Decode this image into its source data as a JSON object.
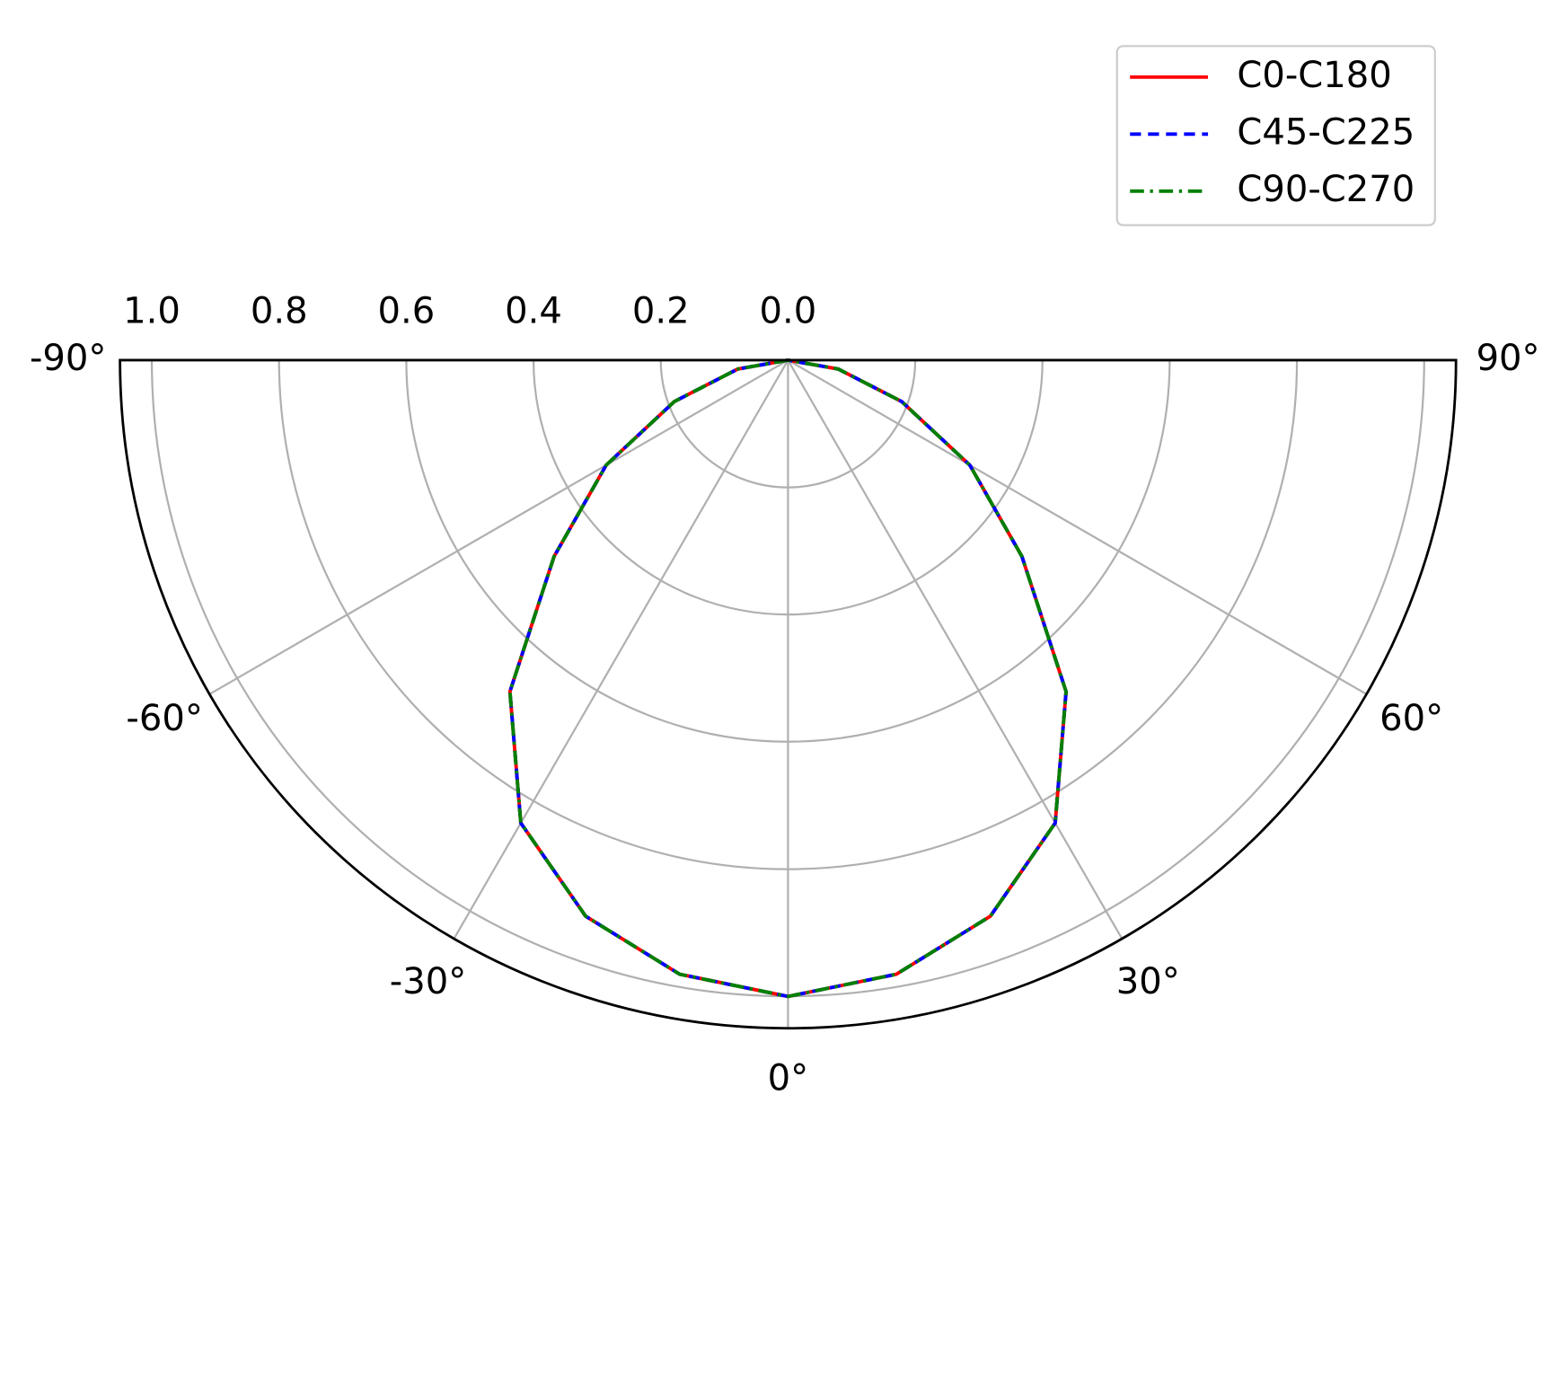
{
  "chart_data": {
    "type": "polar",
    "x": [
      -90,
      -80,
      -70,
      -60,
      -50,
      -40,
      -30,
      -20,
      -10,
      0,
      10,
      20,
      30,
      40,
      50,
      60,
      70,
      80,
      90
    ],
    "series": [
      {
        "name": "C0-C180",
        "color": "#ff0000",
        "linestyle": "solid",
        "values": [
          0,
          0.08,
          0.19,
          0.33,
          0.48,
          0.68,
          0.84,
          0.93,
          0.98,
          1.0,
          0.98,
          0.93,
          0.84,
          0.68,
          0.48,
          0.33,
          0.19,
          0.08,
          0
        ]
      },
      {
        "name": "C45-C225",
        "color": "#0000ff",
        "linestyle": "dashed",
        "values": [
          0,
          0.08,
          0.19,
          0.33,
          0.48,
          0.68,
          0.84,
          0.93,
          0.98,
          1.0,
          0.98,
          0.93,
          0.84,
          0.68,
          0.48,
          0.33,
          0.19,
          0.08,
          0
        ]
      },
      {
        "name": "C90-C270",
        "color": "#008000",
        "linestyle": "dashdot",
        "values": [
          0,
          0.08,
          0.19,
          0.33,
          0.48,
          0.68,
          0.84,
          0.93,
          0.98,
          1.0,
          0.98,
          0.93,
          0.84,
          0.68,
          0.48,
          0.33,
          0.19,
          0.08,
          0
        ]
      }
    ],
    "xlim": [
      -90,
      90
    ],
    "xticks": [
      {
        "value": -90,
        "label": "-90°"
      },
      {
        "value": -60,
        "label": "-60°"
      },
      {
        "value": -30,
        "label": "-30°"
      },
      {
        "value": 0,
        "label": "0°"
      },
      {
        "value": 30,
        "label": "30°"
      },
      {
        "value": 60,
        "label": "60°"
      },
      {
        "value": 90,
        "label": "90°"
      }
    ],
    "ylim": [
      0,
      1.05
    ],
    "yticks": [
      {
        "value": 0,
        "label": "0.0"
      },
      {
        "value": 0.2,
        "label": "0.2"
      },
      {
        "value": 0.4,
        "label": "0.4"
      },
      {
        "value": 0.6,
        "label": "0.6"
      },
      {
        "value": 0.8,
        "label": "0.8"
      },
      {
        "value": 1,
        "label": "1.0"
      }
    ],
    "grid": true,
    "legend": "upper right"
  }
}
